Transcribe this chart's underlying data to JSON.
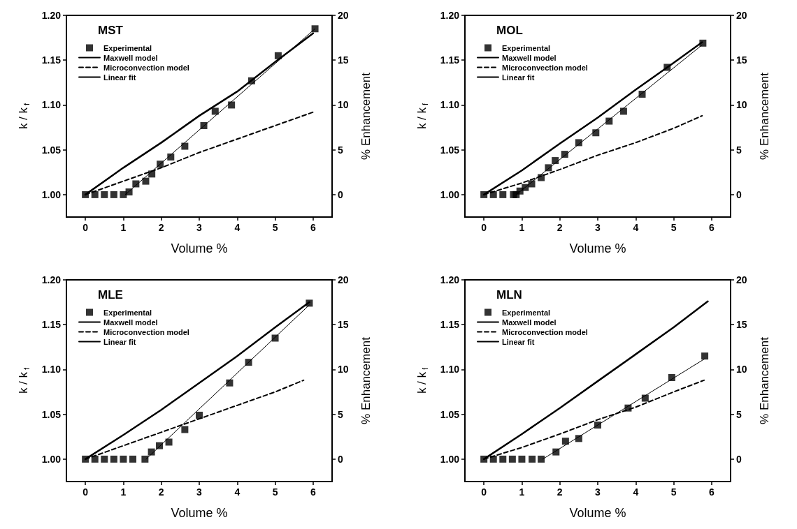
{
  "chart_data": [
    {
      "type": "line",
      "title": "MST",
      "xlabel": "Volume %",
      "ylabel": "k / k$_{f}$",
      "y2label": "% Enhancement",
      "xlim": [
        -0.5,
        6.5
      ],
      "xticks": [
        0,
        1,
        2,
        3,
        4,
        5,
        6
      ],
      "ylim": [
        0.975,
        1.2
      ],
      "yticks": [
        {
          "value": 1,
          "label": "1.00"
        },
        {
          "value": 1.05,
          "label": "1.05"
        },
        {
          "value": 1.1,
          "label": "1.10"
        },
        {
          "value": 1.15,
          "label": "1.15"
        },
        {
          "value": 1.2,
          "label": "1.20"
        }
      ],
      "y2lim": [
        -2.5,
        20
      ],
      "y2ticks": [
        0,
        5,
        10,
        15,
        20
      ],
      "legend": "top left",
      "grid": false,
      "series": [
        {
          "name": "Experimental",
          "type": "scatter",
          "marker": "square",
          "color": "#000000",
          "x": [
            0,
            0.25,
            0.5,
            0.75,
            1.0,
            1.15,
            1.33,
            1.59,
            1.75,
            1.97,
            2.25,
            2.62,
            3.12,
            3.42,
            3.85,
            4.38,
            5.08,
            6.05
          ],
          "values": [
            1,
            1,
            1,
            1,
            1,
            1.003,
            1.012,
            1.015,
            1.023,
            1.034,
            1.042,
            1.054,
            1.077,
            1.093,
            1.1,
            1.127,
            1.155,
            1.185
          ]
        },
        {
          "name": "Maxwell model",
          "type": "line",
          "marker": "none",
          "line_style": "solid",
          "color": "#000000",
          "x": [
            0,
            1,
            2,
            3,
            4,
            5,
            6
          ],
          "values": [
            1,
            1.03,
            1.058,
            1.088,
            1.115,
            1.148,
            1.18
          ]
        },
        {
          "name": "Microconvection model",
          "type": "line",
          "marker": "none",
          "line_style": "dashed",
          "color": "#000000",
          "x": [
            0,
            1,
            2,
            3,
            4,
            5,
            6
          ],
          "values": [
            1,
            1.015,
            1.03,
            1.047,
            1.062,
            1.077,
            1.092
          ]
        },
        {
          "name": "Linear fit",
          "type": "line",
          "marker": "none",
          "line_style": "solid",
          "color": "#000000",
          "x": [
            1.05,
            6.05
          ],
          "values": [
            1,
            1.185
          ]
        }
      ]
    },
    {
      "type": "line",
      "title": "MOL",
      "xlabel": "Volume %",
      "ylabel": "k / k$_{f}$",
      "y2label": "% Enhancement",
      "xlim": [
        -0.5,
        6.5
      ],
      "xticks": [
        0,
        1,
        2,
        3,
        4,
        5,
        6
      ],
      "ylim": [
        0.975,
        1.2
      ],
      "yticks": [
        {
          "value": 1,
          "label": "1.00"
        },
        {
          "value": 1.05,
          "label": "1.05"
        },
        {
          "value": 1.1,
          "label": "1.10"
        },
        {
          "value": 1.15,
          "label": "1.15"
        },
        {
          "value": 1.2,
          "label": "1.20"
        }
      ],
      "y2lim": [
        -2.5,
        20
      ],
      "y2ticks": [
        0,
        5,
        10,
        15,
        20
      ],
      "legend": "top left",
      "grid": false,
      "series": [
        {
          "name": "Experimental",
          "type": "scatter",
          "marker": "square",
          "color": "#000000",
          "x": [
            0,
            0.25,
            0.5,
            0.78,
            0.85,
            0.95,
            1.09,
            1.26,
            1.51,
            1.7,
            1.88,
            2.13,
            2.5,
            2.95,
            3.3,
            3.68,
            4.17,
            4.83,
            5.77
          ],
          "values": [
            1,
            1,
            1,
            1,
            1,
            1.004,
            1.008,
            1.012,
            1.019,
            1.03,
            1.038,
            1.045,
            1.058,
            1.069,
            1.082,
            1.093,
            1.112,
            1.142,
            1.169
          ]
        },
        {
          "name": "Maxwell model",
          "type": "line",
          "marker": "none",
          "line_style": "solid",
          "color": "#000000",
          "x": [
            0,
            1,
            2,
            3,
            4,
            5,
            5.75
          ],
          "values": [
            1,
            1.027,
            1.057,
            1.086,
            1.117,
            1.147,
            1.17
          ]
        },
        {
          "name": "Microconvection model",
          "type": "line",
          "marker": "none",
          "line_style": "dashed",
          "color": "#000000",
          "x": [
            0,
            1,
            2,
            3,
            4,
            5,
            5.75
          ],
          "values": [
            1,
            1.013,
            1.028,
            1.044,
            1.058,
            1.074,
            1.088
          ]
        },
        {
          "name": "Linear fit",
          "type": "line",
          "marker": "none",
          "line_style": "solid",
          "color": "#000000",
          "x": [
            0.85,
            5.75
          ],
          "values": [
            1,
            1.167
          ]
        }
      ]
    },
    {
      "type": "line",
      "title": "MLE",
      "xlabel": "Volume %",
      "ylabel": "k / k$_{f}$",
      "y2label": "% Enhancement",
      "xlim": [
        -0.5,
        6.5
      ],
      "xticks": [
        0,
        1,
        2,
        3,
        4,
        5,
        6
      ],
      "ylim": [
        0.975,
        1.2
      ],
      "yticks": [
        {
          "value": 1,
          "label": "1.00"
        },
        {
          "value": 1.05,
          "label": "1.05"
        },
        {
          "value": 1.1,
          "label": "1.10"
        },
        {
          "value": 1.15,
          "label": "1.15"
        },
        {
          "value": 1.2,
          "label": "1.20"
        }
      ],
      "y2lim": [
        -2.5,
        20
      ],
      "y2ticks": [
        0,
        5,
        10,
        15,
        20
      ],
      "legend": "top left",
      "grid": false,
      "series": [
        {
          "name": "Experimental",
          "type": "scatter",
          "marker": "square",
          "color": "#000000",
          "x": [
            0,
            0.25,
            0.5,
            0.75,
            1.0,
            1.25,
            1.57,
            1.74,
            1.95,
            2.2,
            2.62,
            3.0,
            3.8,
            4.3,
            5.0,
            5.9
          ],
          "values": [
            1,
            1,
            1,
            1,
            1,
            1,
            1,
            1.008,
            1.015,
            1.019,
            1.033,
            1.049,
            1.085,
            1.108,
            1.135,
            1.174
          ]
        },
        {
          "name": "Maxwell model",
          "type": "line",
          "marker": "none",
          "line_style": "solid",
          "color": "#000000",
          "x": [
            0,
            1,
            2,
            3,
            4,
            5,
            5.9
          ],
          "values": [
            1,
            1.027,
            1.055,
            1.085,
            1.115,
            1.147,
            1.175
          ]
        },
        {
          "name": "Microconvection model",
          "type": "line",
          "marker": "none",
          "line_style": "dashed",
          "color": "#000000",
          "x": [
            0,
            1,
            2,
            3,
            4,
            5,
            5.75
          ],
          "values": [
            1,
            1.015,
            1.03,
            1.045,
            1.06,
            1.075,
            1.088
          ]
        },
        {
          "name": "Linear fit",
          "type": "line",
          "marker": "none",
          "line_style": "solid",
          "color": "#000000",
          "x": [
            1.6,
            5.9
          ],
          "values": [
            1,
            1.172
          ]
        }
      ]
    },
    {
      "type": "line",
      "title": "MLN",
      "xlabel": "Volume %",
      "ylabel": "k / k$_{f}$",
      "y2label": "% Enhancement",
      "xlim": [
        -0.5,
        6.5
      ],
      "xticks": [
        0,
        1,
        2,
        3,
        4,
        5,
        6
      ],
      "ylim": [
        0.975,
        1.2
      ],
      "yticks": [
        {
          "value": 1,
          "label": "1.00"
        },
        {
          "value": 1.05,
          "label": "1.05"
        },
        {
          "value": 1.1,
          "label": "1.10"
        },
        {
          "value": 1.15,
          "label": "1.15"
        },
        {
          "value": 1.2,
          "label": "1.20"
        }
      ],
      "y2lim": [
        -2.5,
        20
      ],
      "y2ticks": [
        0,
        5,
        10,
        15,
        20
      ],
      "legend": "top left",
      "grid": false,
      "series": [
        {
          "name": "Experimental",
          "type": "scatter",
          "marker": "square",
          "color": "#000000",
          "x": [
            0,
            0.25,
            0.5,
            0.75,
            1.0,
            1.27,
            1.51,
            1.9,
            2.15,
            2.5,
            3.0,
            3.8,
            4.25,
            4.95,
            5.82
          ],
          "values": [
            1,
            1,
            1,
            1,
            1,
            1,
            1,
            1.008,
            1.02,
            1.023,
            1.038,
            1.057,
            1.068,
            1.091,
            1.115
          ]
        },
        {
          "name": "Maxwell model",
          "type": "line",
          "marker": "none",
          "line_style": "solid",
          "color": "#000000",
          "x": [
            0,
            1,
            2,
            3,
            4,
            5,
            5.9
          ],
          "values": [
            1,
            1.028,
            1.057,
            1.087,
            1.117,
            1.147,
            1.176
          ]
        },
        {
          "name": "Microconvection model",
          "type": "line",
          "marker": "none",
          "line_style": "dashed",
          "color": "#000000",
          "x": [
            0,
            1,
            2,
            3,
            4,
            5,
            5.8
          ],
          "values": [
            1,
            1.013,
            1.028,
            1.044,
            1.058,
            1.075,
            1.088
          ]
        },
        {
          "name": "Linear fit",
          "type": "line",
          "marker": "none",
          "line_style": "solid",
          "color": "#000000",
          "x": [
            1.55,
            5.82
          ],
          "values": [
            1,
            1.112
          ]
        }
      ]
    }
  ]
}
